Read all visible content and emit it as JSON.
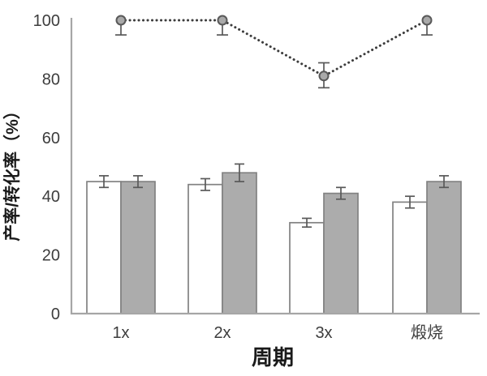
{
  "chart_data": {
    "type": "bar",
    "subtype": "grouped-bars-with-dotted-line-overlay",
    "title": "",
    "xlabel": "周期",
    "ylabel": "产率/转化率（%）",
    "ylim": [
      0,
      100
    ],
    "yticks": [
      0,
      20,
      40,
      60,
      80,
      100
    ],
    "grid": false,
    "legend": "none",
    "categories": [
      "1x",
      "2x",
      "3x",
      "煅烧"
    ],
    "series": [
      {
        "name": "white-bar-series",
        "type": "bar",
        "values": [
          45,
          44,
          31,
          38
        ],
        "errors": [
          2,
          2,
          1.5,
          2
        ],
        "fill": "#ffffff",
        "stroke": "#828282"
      },
      {
        "name": "gray-bar-series",
        "type": "bar",
        "values": [
          45,
          48,
          41,
          45
        ],
        "errors": [
          2,
          3,
          2,
          2
        ],
        "fill": "#acacac",
        "stroke": "#828282"
      },
      {
        "name": "dotted-line-series",
        "type": "line",
        "values": [
          100,
          100,
          81,
          100
        ],
        "errors_up": [
          0,
          0,
          4.5,
          0
        ],
        "errors_down": [
          5,
          5,
          4,
          5
        ],
        "line_color": "#3c3c3c",
        "marker_fill": "#a9a9a9",
        "marker_stroke": "#595959"
      }
    ]
  },
  "colors": {
    "axis_line": "#a6a6a6",
    "tick_text": "#3d3d3d",
    "axis_title_text": "#1a1a1a",
    "error_bar": "#595959",
    "background": "#ffffff"
  }
}
